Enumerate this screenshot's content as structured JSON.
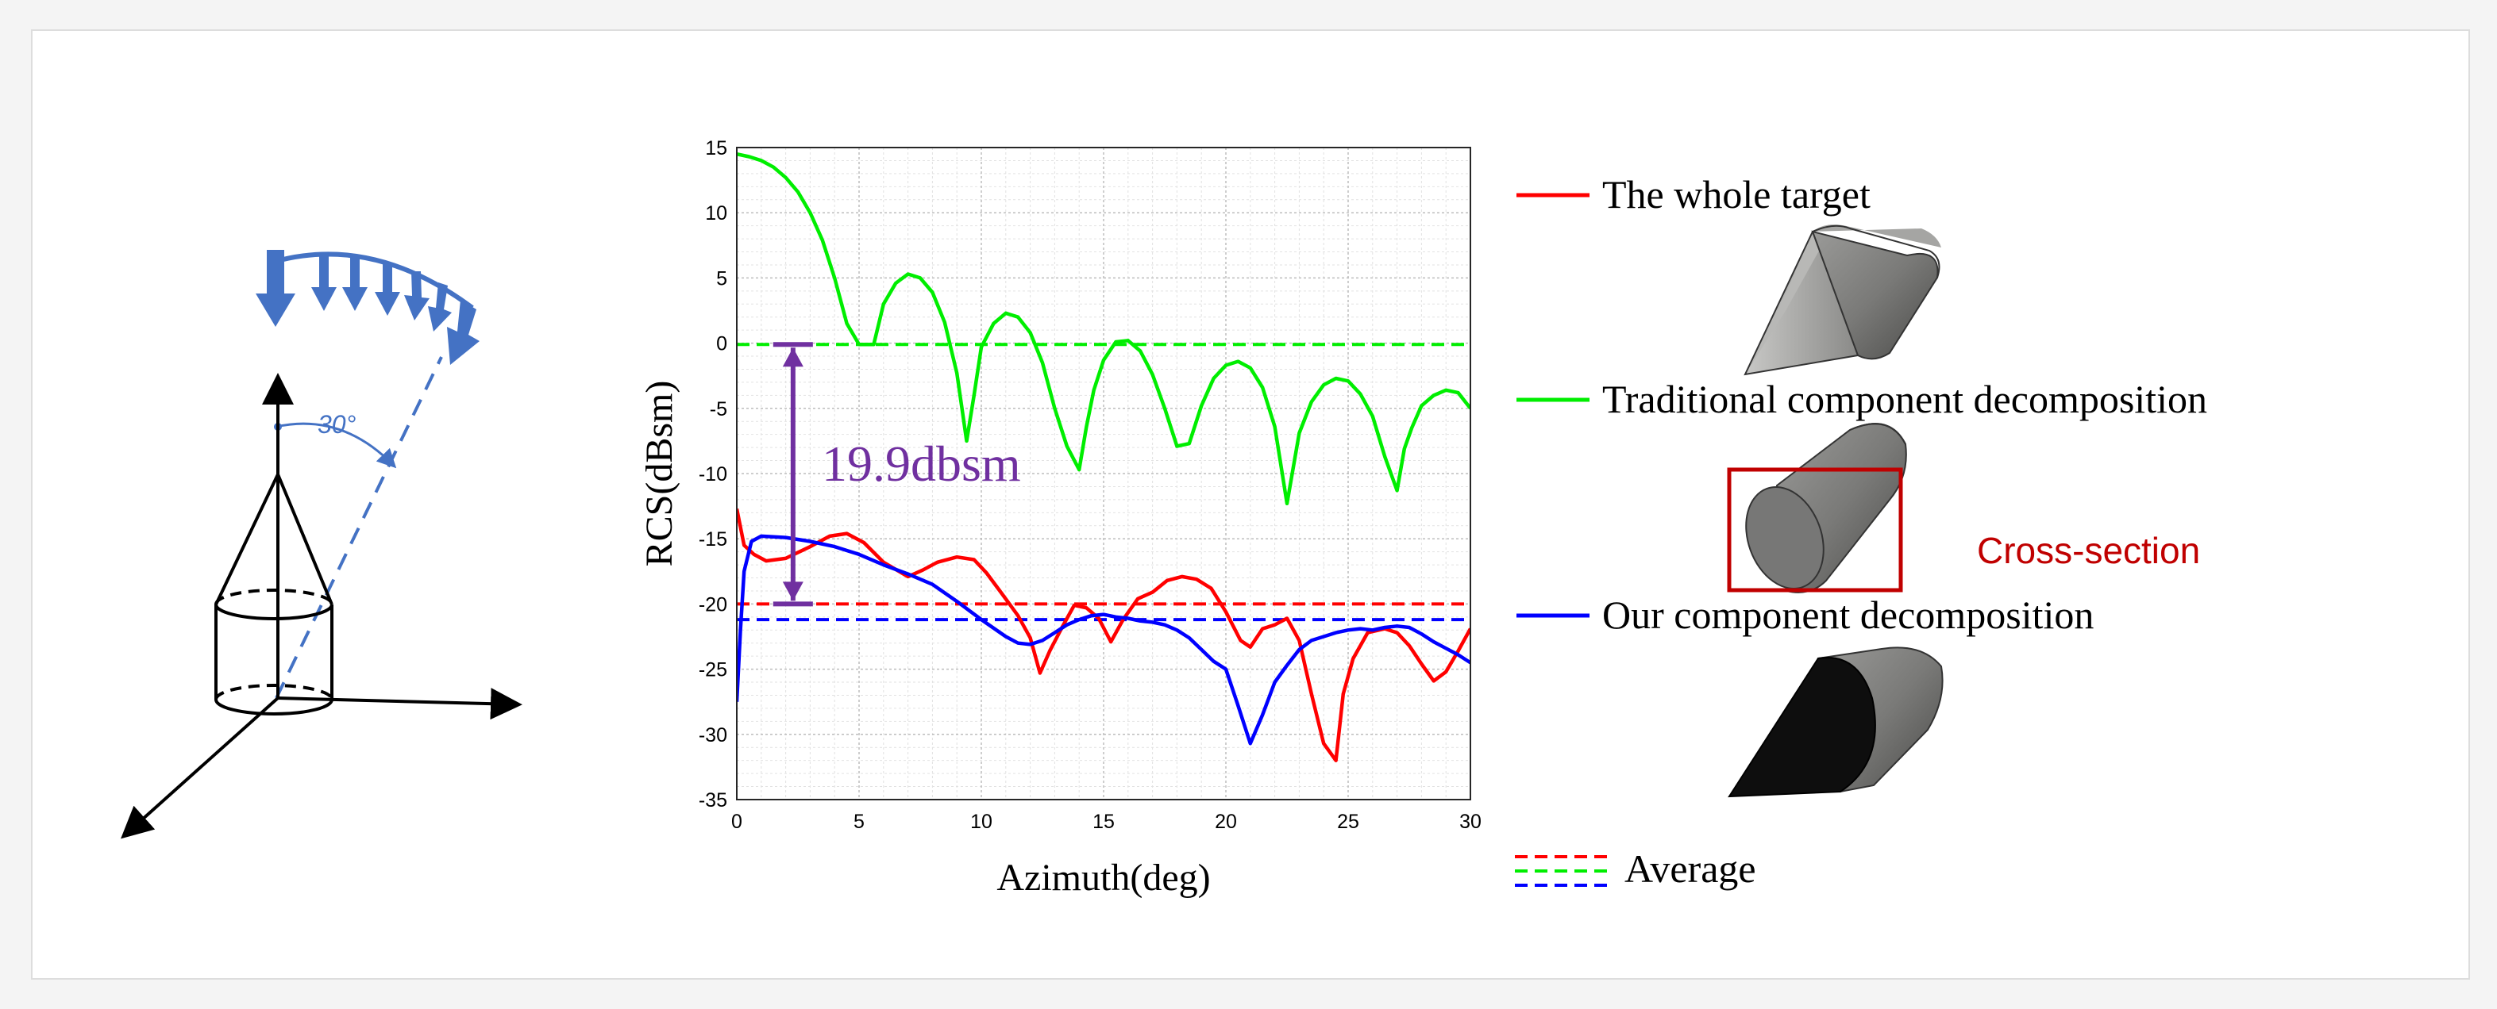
{
  "colors": {
    "whole": "#ff0000",
    "traditional": "#00ee00",
    "ours": "#0000ff",
    "annotation": "#7030a0",
    "geometry_blue": "#4472c4",
    "cross_section": "#c00000"
  },
  "geometry_panel": {
    "angle_label": "30°",
    "icons": [
      "incident-wave-arrows-icon",
      "cone-cylinder-target-icon",
      "xyz-axes-icon"
    ]
  },
  "chart_data": {
    "type": "line",
    "xlabel": "Azimuth(deg)",
    "ylabel": "RCS(dBsm)",
    "xlim": [
      0,
      30
    ],
    "ylim": [
      -35,
      15
    ],
    "xticks": [
      "0",
      "5",
      "10",
      "15",
      "20",
      "25",
      "30"
    ],
    "yticks": [
      "15",
      "10",
      "5",
      "0",
      "-5",
      "-10",
      "-15",
      "-20",
      "-25",
      "-30",
      "-35"
    ],
    "grid": true,
    "minor_grid": true,
    "series": [
      {
        "name": "The whole target",
        "color": "#ff0000",
        "average": -20.0,
        "x": [
          0,
          0.3,
          0.7,
          1.2,
          2,
          3,
          3.8,
          4.5,
          5.2,
          6,
          7,
          7.6,
          8.2,
          9,
          9.7,
          10.2,
          10.8,
          11.5,
          12,
          12.4,
          12.8,
          13.3,
          13.8,
          14.3,
          14.8,
          15.3,
          15.8,
          16.4,
          17,
          17.6,
          18.2,
          18.8,
          19.4,
          20,
          20.6,
          21,
          21.5,
          22,
          22.5,
          23,
          23.5,
          24,
          24.5,
          24.8,
          25.2,
          25.8,
          26.5,
          27,
          27.5,
          28,
          28.5,
          29,
          29.5,
          30
        ],
        "y": [
          -12.7,
          -15.5,
          -16.2,
          -16.7,
          -16.5,
          -15.6,
          -14.8,
          -14.6,
          -15.3,
          -16.8,
          -17.9,
          -17.4,
          -16.8,
          -16.4,
          -16.6,
          -17.6,
          -19.1,
          -20.9,
          -22.6,
          -25.3,
          -23.6,
          -21.8,
          -20.1,
          -20.3,
          -21.1,
          -22.9,
          -21.2,
          -19.6,
          -19.1,
          -18.2,
          -17.9,
          -18.1,
          -18.8,
          -20.6,
          -22.8,
          -23.3,
          -21.9,
          -21.6,
          -21.1,
          -22.8,
          -26.9,
          -30.7,
          -32.0,
          -26.9,
          -24.2,
          -22.2,
          -21.9,
          -22.2,
          -23.2,
          -24.6,
          -25.9,
          -25.2,
          -23.6,
          -21.9
        ]
      },
      {
        "name": "Traditional component decomposition",
        "color": "#00ee00",
        "average": -0.1,
        "x": [
          0,
          0.5,
          1,
          1.5,
          2,
          2.5,
          3,
          3.5,
          4,
          4.5,
          5,
          5.3,
          5.6,
          6,
          6.5,
          7,
          7.5,
          8,
          8.5,
          9,
          9.4,
          9.7,
          10,
          10.5,
          11,
          11.5,
          12,
          12.5,
          13,
          13.5,
          14,
          14.3,
          14.6,
          15,
          15.5,
          16,
          16.5,
          17,
          17.5,
          18,
          18.5,
          19,
          19.5,
          20,
          20.5,
          21,
          21.5,
          22,
          22.5,
          23,
          23.5,
          24,
          24.5,
          25,
          25.5,
          26,
          26.5,
          27,
          27.3,
          27.6,
          28,
          28.5,
          29,
          29.5,
          30
        ],
        "y": [
          14.5,
          14.3,
          14.0,
          13.5,
          12.7,
          11.6,
          10.0,
          7.9,
          5.0,
          1.5,
          -0.1,
          -0.1,
          -0.1,
          3.0,
          4.6,
          5.3,
          5.0,
          3.9,
          1.6,
          -2.3,
          -7.5,
          -4.0,
          -0.3,
          1.5,
          2.3,
          2.0,
          0.8,
          -1.5,
          -5.0,
          -7.9,
          -9.7,
          -6.4,
          -3.6,
          -1.3,
          0.1,
          0.2,
          -0.6,
          -2.4,
          -5.0,
          -7.9,
          -7.7,
          -4.8,
          -2.7,
          -1.7,
          -1.4,
          -1.9,
          -3.4,
          -6.4,
          -12.3,
          -6.9,
          -4.5,
          -3.2,
          -2.7,
          -2.9,
          -3.9,
          -5.6,
          -8.7,
          -11.3,
          -8.1,
          -6.5,
          -4.8,
          -4.0,
          -3.6,
          -3.8,
          -5.0
        ]
      },
      {
        "name": "Our component decomposition",
        "color": "#0000ff",
        "average": -21.2,
        "x": [
          0,
          0.15,
          0.3,
          0.6,
          1,
          2,
          3,
          4,
          5,
          6,
          7,
          8,
          9,
          10,
          11,
          11.5,
          12,
          12.5,
          13,
          13.5,
          14,
          14.5,
          15,
          15.5,
          16,
          16.5,
          17,
          17.5,
          18,
          18.5,
          19,
          19.5,
          20,
          20.5,
          21,
          21.5,
          22,
          22.5,
          23,
          23.5,
          24,
          24.5,
          25,
          25.5,
          26,
          26.5,
          27,
          27.5,
          28,
          28.5,
          29,
          29.5,
          30
        ],
        "y": [
          -27.5,
          -22.0,
          -17.5,
          -15.2,
          -14.8,
          -14.9,
          -15.2,
          -15.6,
          -16.2,
          -17.0,
          -17.7,
          -18.5,
          -19.8,
          -21.2,
          -22.5,
          -23.0,
          -23.1,
          -22.8,
          -22.2,
          -21.6,
          -21.2,
          -20.9,
          -20.8,
          -21.0,
          -21.1,
          -21.3,
          -21.4,
          -21.6,
          -22.0,
          -22.6,
          -23.5,
          -24.4,
          -25.0,
          -27.8,
          -30.7,
          -28.5,
          -26.0,
          -24.7,
          -23.5,
          -22.8,
          -22.5,
          -22.2,
          -22.0,
          -21.9,
          -22.0,
          -21.8,
          -21.7,
          -21.8,
          -22.3,
          -22.9,
          -23.4,
          -23.9,
          -24.5
        ]
      }
    ],
    "annotation": {
      "label": "19.9dbsm",
      "from": -0.1,
      "to": -20.0,
      "x": 2.3
    },
    "legend": {
      "placement": "right",
      "entries": [
        "The whole target",
        "Traditional component decomposition",
        "Our component decomposition"
      ],
      "average_label": "Average"
    }
  },
  "right_panel": {
    "cross_section_label": "Cross-section",
    "images": [
      "cone-cylinder-model-icon",
      "cylinder-model-icon",
      "cylinder-cone-shadowed-model-icon"
    ]
  }
}
